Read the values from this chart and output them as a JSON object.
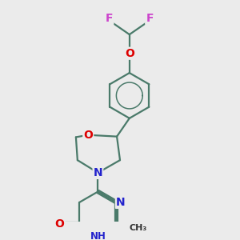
{
  "background_color": "#ebebeb",
  "bond_color": "#4a7a6a",
  "bond_width": 1.6,
  "atom_colors": {
    "O": "#dd0000",
    "N": "#2222cc",
    "F": "#cc44cc",
    "C": "#333333",
    "H": "#2222cc"
  },
  "font_size": 9,
  "fig_width": 3.0,
  "fig_height": 3.0,
  "dpi": 100
}
